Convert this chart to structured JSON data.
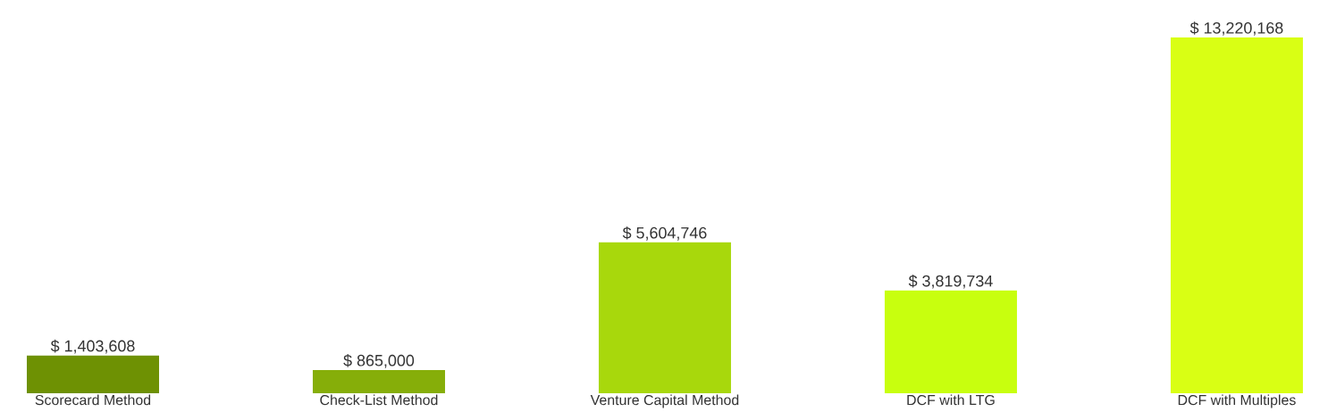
{
  "chart_data": {
    "type": "bar",
    "categories": [
      "Scorecard Method",
      "Check-List Method",
      "Venture Capital Method",
      "DCF with LTG",
      "DCF with Multiples"
    ],
    "values": [
      1403608,
      865000,
      5604746,
      3819734,
      13220168
    ],
    "colors": [
      "#6e9103",
      "#86ae09",
      "#a8d80c",
      "#c8ff0e",
      "#d9ff14"
    ],
    "value_labels": [
      "$ 1,403,608",
      "$ 865,000",
      "$ 5,604,746",
      "$ 3,819,734",
      "$ 13,220,168"
    ]
  }
}
